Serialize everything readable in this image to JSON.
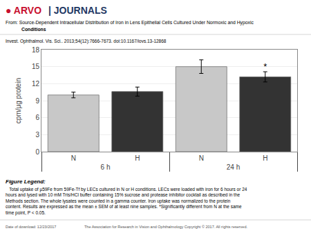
{
  "chart_data": {
    "type": "bar",
    "logo": [
      {
        "text": "● ARVO",
        "color": "#c8102e"
      },
      {
        "text": "| JOURNALS",
        "color": "#1f3864"
      }
    ],
    "title": [
      "From: Source-Dependent Intracellular Distribution of Iron in Lens Epithelial Cells Cultured Under Normoxic and Hypoxic",
      "Conditions"
    ],
    "subtitle": "Invest. Ophthalmol. Vis. Sci.. 2013;54(12):7666-7673. doi:10.1167/iovs.13-12868",
    "caption_title": "Figure Legend:",
    "caption": "   Total uptake of µ59Fe from 59Fe-Tf by LECs cultured in N or H conditions. LECs were loaded with iron for 6 hours or 24\nhours and lysed with 10 mM Tris/HCl buffer containing 15% sucrose and protease inhibitor cocktail as described in the\nMethods section. The whole lysates were counted in a gamma counter. Iron uptake was normalized to the protein\ncontent. Results are expressed as the mean ± SEM of at least nine samples. *Significantly different from N at the same\ntime point, P < 0.05.",
    "footer": [
      "Date of download: 12/23/2017",
      "The Association for Research in Vision and Ophthalmology Copyright © 2017. All rights reserved."
    ],
    "categories": [
      "N",
      "H",
      "N",
      "H"
    ],
    "category_groups": [
      "6 h",
      "6 h",
      "24 h",
      "24 h"
    ],
    "values": [
      10.0,
      10.6,
      15.0,
      13.2
    ],
    "errors": [
      0.5,
      0.8,
      1.2,
      0.9
    ],
    "colors": [
      "#c8c8c8",
      "#333333",
      "#c8c8c8",
      "#333333"
    ],
    "ylabel": "cpm/μg protein",
    "ylim": [
      0,
      18
    ],
    "yticks": [
      0,
      3,
      6,
      9,
      12,
      15,
      18
    ],
    "grid": true,
    "annotations": [
      {
        "text": "*",
        "index": 3
      }
    ]
  }
}
